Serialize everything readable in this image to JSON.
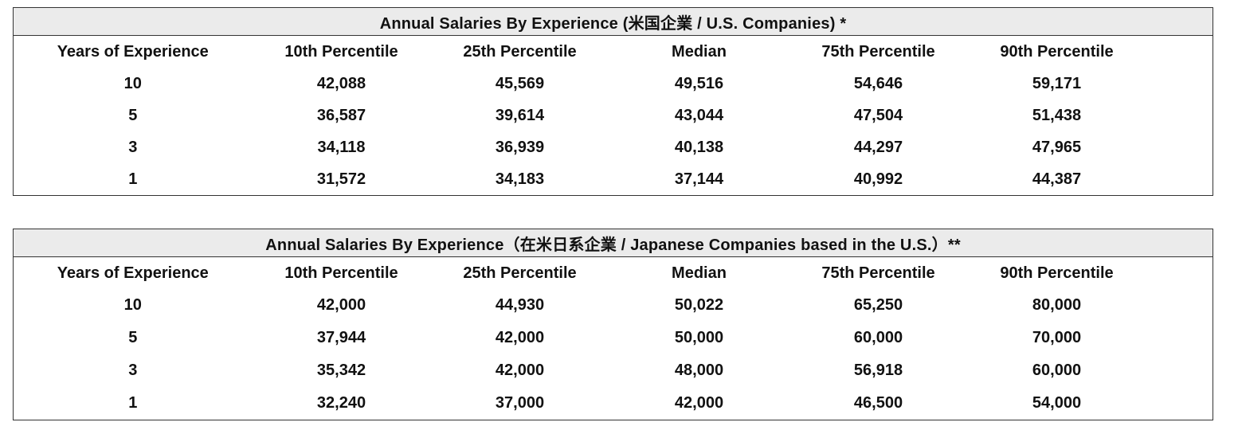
{
  "chart_data": [
    {
      "type": "table",
      "title": "Annual Salaries By Experience (米国企業 / U.S. Companies) *",
      "columns": [
        "Years of Experience",
        "10th Percentile",
        "25th Percentile",
        "Median",
        "75th Percentile",
        "90th Percentile"
      ],
      "rows": [
        [
          "10",
          "42,088",
          "45,569",
          "49,516",
          "54,646",
          "59,171"
        ],
        [
          "5",
          "36,587",
          "39,614",
          "43,044",
          "47,504",
          "51,438"
        ],
        [
          "3",
          "34,118",
          "36,939",
          "40,138",
          "44,297",
          "47,965"
        ],
        [
          "1",
          "31,572",
          "34,183",
          "37,144",
          "40,992",
          "44,387"
        ]
      ]
    },
    {
      "type": "table",
      "title": "Annual Salaries By Experience（在米日系企業 / Japanese Companies based in the U.S.）**",
      "columns": [
        "Years of Experience",
        "10th Percentile",
        "25th Percentile",
        "Median",
        "75th Percentile",
        "90th Percentile"
      ],
      "rows": [
        [
          "10",
          "42,000",
          "44,930",
          "50,022",
          "65,250",
          "80,000"
        ],
        [
          "5",
          "37,944",
          "42,000",
          "50,000",
          "60,000",
          "70,000"
        ],
        [
          "3",
          "35,342",
          "42,000",
          "48,000",
          "56,918",
          "60,000"
        ],
        [
          "1",
          "32,240",
          "37,000",
          "42,000",
          "46,500",
          "54,000"
        ]
      ]
    }
  ]
}
